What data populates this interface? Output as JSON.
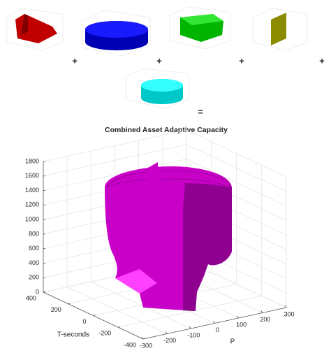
{
  "operators": [
    "+",
    "+",
    "+",
    "+",
    "="
  ],
  "chart_data": {
    "type": "surface3d",
    "title": "Combined Asset Adaptive Capacity",
    "xlabel": "P",
    "ylabel": "T-seconds",
    "xlim": [
      -300,
      300
    ],
    "xticks": [
      -300,
      -200,
      -100,
      0,
      100,
      200,
      300
    ],
    "ylim": [
      -400,
      400
    ],
    "yticks": [
      -400,
      -200,
      0,
      200,
      400
    ],
    "zlim": [
      0,
      1800
    ],
    "zticks": [
      0,
      200,
      400,
      600,
      800,
      1000,
      1200,
      1400,
      1600,
      1800
    ],
    "grid": true,
    "color": "#c800c8"
  }
}
